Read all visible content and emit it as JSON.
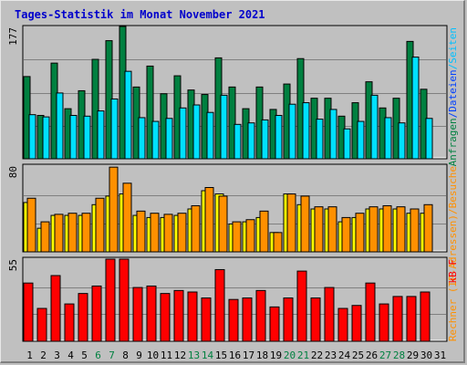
{
  "chart_data": [
    {
      "type": "bar",
      "title": "Tages-Statistik im Monat November 2021",
      "ylabel_parts": [
        "Anfragen",
        "/",
        "Dateien",
        "/",
        "Seiten"
      ],
      "y_tick_label": "177",
      "ylim": [
        0,
        177
      ],
      "categories": [
        "1",
        "2",
        "3",
        "4",
        "5",
        "6",
        "7",
        "8",
        "9",
        "10",
        "11",
        "12",
        "13",
        "14",
        "15",
        "16",
        "17",
        "18",
        "19",
        "20",
        "21",
        "22",
        "23",
        "24",
        "25",
        "26",
        "27",
        "28",
        "29",
        "30",
        "31"
      ],
      "series": [
        {
          "name": "Anfragen",
          "values": [
            110,
            58,
            128,
            67,
            91,
            133,
            158,
            177,
            96,
            124,
            87,
            111,
            92,
            86,
            135,
            96,
            67,
            96,
            66,
            100,
            134,
            81,
            81,
            57,
            75,
            103,
            68,
            81,
            157,
            93,
            0
          ]
        },
        {
          "name": "Dateien",
          "values": [
            59,
            56,
            88,
            58,
            57,
            64,
            80,
            117,
            55,
            50,
            54,
            68,
            72,
            62,
            85,
            46,
            48,
            52,
            58,
            73,
            75,
            53,
            66,
            40,
            50,
            85,
            55,
            48,
            136,
            54,
            0
          ]
        },
        {
          "name": "Seiten",
          "values": [
            0,
            0,
            0,
            0,
            0,
            0,
            0,
            0,
            0,
            0,
            0,
            0,
            0,
            0,
            0,
            0,
            0,
            0,
            0,
            0,
            0,
            0,
            0,
            0,
            0,
            0,
            0,
            0,
            0,
            0,
            0
          ]
        }
      ],
      "colors": {
        "Anfragen": "#008040",
        "Dateien": "#00e0ff",
        "Seiten": "#00c0ff"
      },
      "grid": true
    },
    {
      "type": "bar",
      "ylabel_parts": [
        "Rechner (IP-Adressen)",
        "/",
        "Besuche"
      ],
      "y_tick_label": "80",
      "ylim": [
        0,
        80
      ],
      "categories": [
        "1",
        "2",
        "3",
        "4",
        "5",
        "6",
        "7",
        "8",
        "9",
        "10",
        "11",
        "12",
        "13",
        "14",
        "15",
        "16",
        "17",
        "18",
        "19",
        "20",
        "21",
        "22",
        "23",
        "24",
        "25",
        "26",
        "27",
        "28",
        "29",
        "30",
        "31"
      ],
      "series": [
        {
          "name": "Rechner (IP-Adressen)",
          "values": [
            46,
            22,
            34,
            34,
            34,
            44,
            52,
            54,
            34,
            32,
            32,
            34,
            40,
            57,
            54,
            26,
            28,
            32,
            18,
            54,
            44,
            40,
            40,
            28,
            32,
            40,
            40,
            40,
            36,
            36,
            0
          ]
        },
        {
          "name": "Besuche",
          "values": [
            50,
            28,
            35,
            36,
            36,
            50,
            79,
            64,
            38,
            36,
            35,
            36,
            43,
            60,
            52,
            28,
            30,
            38,
            18,
            54,
            52,
            42,
            42,
            32,
            36,
            42,
            43,
            42,
            40,
            44,
            0
          ]
        }
      ],
      "colors": {
        "Rechner (IP-Adressen)": "#ffff00",
        "Besuche": "#ff9000"
      },
      "grid": true
    },
    {
      "type": "bar",
      "ylabel_parts": [
        "kB F"
      ],
      "y_tick_label": "55",
      "ylim": [
        0,
        55
      ],
      "categories": [
        "1",
        "2",
        "3",
        "4",
        "5",
        "6",
        "7",
        "8",
        "9",
        "10",
        "11",
        "12",
        "13",
        "14",
        "15",
        "16",
        "17",
        "18",
        "19",
        "20",
        "21",
        "22",
        "23",
        "24",
        "25",
        "26",
        "27",
        "28",
        "29",
        "30",
        "31"
      ],
      "series": [
        {
          "name": "kB F",
          "values": [
            39,
            22,
            44,
            25,
            32,
            37,
            55,
            55,
            36,
            37,
            32,
            34,
            33,
            29,
            48,
            28,
            29,
            34,
            23,
            29,
            47,
            29,
            36,
            22,
            24,
            39,
            25,
            30,
            30,
            33,
            0
          ]
        }
      ],
      "colors": {
        "kB F": "#ff0000"
      },
      "grid": true
    }
  ],
  "x_label_colors": {
    "weekday": "#000000",
    "weekend": "#008040"
  },
  "weekend_days": [
    "6",
    "7",
    "13",
    "14",
    "20",
    "21",
    "27",
    "28"
  ]
}
